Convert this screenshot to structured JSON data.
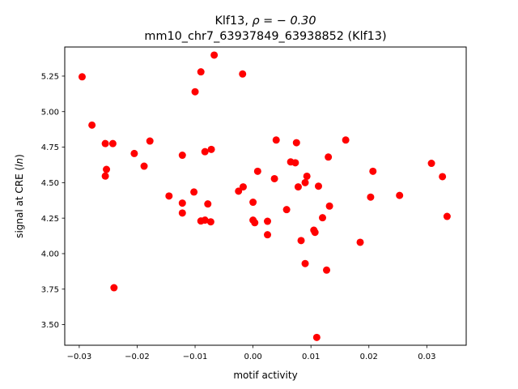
{
  "chart_data": {
    "type": "scatter",
    "title_line1_prefix": "Klf13, ",
    "title_line1_rho": "ρ = − 0.30",
    "title_line2": "mm10_chr7_63937849_63938852 (Klf13)",
    "xlabel": "motif activity",
    "ylabel_prefix": "signal at CRE (",
    "ylabel_italic": "ln",
    "ylabel_suffix": ")",
    "xlim": [
      -0.0325,
      0.0368
    ],
    "ylim": [
      3.355,
      5.455
    ],
    "xticks": [
      {
        "value": -0.03,
        "label": "−0.03"
      },
      {
        "value": -0.02,
        "label": "−0.02"
      },
      {
        "value": -0.01,
        "label": "−0.01"
      },
      {
        "value": 0.0,
        "label": "0.00"
      },
      {
        "value": 0.01,
        "label": "0.01"
      },
      {
        "value": 0.02,
        "label": "0.02"
      },
      {
        "value": 0.03,
        "label": "0.03"
      }
    ],
    "yticks": [
      {
        "value": 3.5,
        "label": "3.50"
      },
      {
        "value": 3.75,
        "label": "3.75"
      },
      {
        "value": 4.0,
        "label": "4.00"
      },
      {
        "value": 4.25,
        "label": "4.25"
      },
      {
        "value": 4.5,
        "label": "4.50"
      },
      {
        "value": 4.75,
        "label": "4.75"
      },
      {
        "value": 5.0,
        "label": "5.00"
      },
      {
        "value": 5.25,
        "label": "5.25"
      }
    ],
    "grid": false,
    "marker_color": "#ff0000",
    "points": [
      {
        "x": -0.0295,
        "y": 5.245
      },
      {
        "x": -0.0278,
        "y": 4.905
      },
      {
        "x": -0.0255,
        "y": 4.775
      },
      {
        "x": -0.0242,
        "y": 4.775
      },
      {
        "x": -0.0253,
        "y": 4.593
      },
      {
        "x": -0.0255,
        "y": 4.546
      },
      {
        "x": -0.024,
        "y": 3.76
      },
      {
        "x": -0.0205,
        "y": 4.705
      },
      {
        "x": -0.0178,
        "y": 4.793
      },
      {
        "x": -0.0188,
        "y": 4.616
      },
      {
        "x": -0.0145,
        "y": 4.406
      },
      {
        "x": -0.0122,
        "y": 4.693
      },
      {
        "x": -0.0122,
        "y": 4.356
      },
      {
        "x": -0.0122,
        "y": 4.286
      },
      {
        "x": -0.0102,
        "y": 4.434
      },
      {
        "x": -0.01,
        "y": 5.14
      },
      {
        "x": -0.009,
        "y": 5.28
      },
      {
        "x": -0.0067,
        "y": 5.398
      },
      {
        "x": -0.0083,
        "y": 4.718
      },
      {
        "x": -0.0072,
        "y": 4.734
      },
      {
        "x": -0.0078,
        "y": 4.35
      },
      {
        "x": -0.009,
        "y": 4.23
      },
      {
        "x": -0.0083,
        "y": 4.236
      },
      {
        "x": -0.0073,
        "y": 4.224
      },
      {
        "x": -0.0018,
        "y": 5.265
      },
      {
        "x": -0.0025,
        "y": 4.44
      },
      {
        "x": -0.0017,
        "y": 4.47
      },
      {
        "x": 0.0,
        "y": 4.362
      },
      {
        "x": 0.0,
        "y": 4.236
      },
      {
        "x": 0.0003,
        "y": 4.218
      },
      {
        "x": 0.0008,
        "y": 4.58
      },
      {
        "x": 0.0025,
        "y": 4.228
      },
      {
        "x": 0.0025,
        "y": 4.133
      },
      {
        "x": 0.0037,
        "y": 4.528
      },
      {
        "x": 0.004,
        "y": 4.8
      },
      {
        "x": 0.0058,
        "y": 4.31
      },
      {
        "x": 0.0065,
        "y": 4.646
      },
      {
        "x": 0.0073,
        "y": 4.64
      },
      {
        "x": 0.0075,
        "y": 4.781
      },
      {
        "x": 0.0078,
        "y": 4.47
      },
      {
        "x": 0.0083,
        "y": 4.092
      },
      {
        "x": 0.009,
        "y": 4.5
      },
      {
        "x": 0.0093,
        "y": 4.545
      },
      {
        "x": 0.009,
        "y": 3.93
      },
      {
        "x": 0.0105,
        "y": 4.165
      },
      {
        "x": 0.0107,
        "y": 4.15
      },
      {
        "x": 0.0113,
        "y": 4.475
      },
      {
        "x": 0.011,
        "y": 3.41
      },
      {
        "x": 0.012,
        "y": 4.253
      },
      {
        "x": 0.013,
        "y": 4.68
      },
      {
        "x": 0.0132,
        "y": 4.335
      },
      {
        "x": 0.0127,
        "y": 3.884
      },
      {
        "x": 0.016,
        "y": 4.8
      },
      {
        "x": 0.0185,
        "y": 4.08
      },
      {
        "x": 0.0203,
        "y": 4.398
      },
      {
        "x": 0.0207,
        "y": 4.58
      },
      {
        "x": 0.0253,
        "y": 4.41
      },
      {
        "x": 0.0308,
        "y": 4.636
      },
      {
        "x": 0.0327,
        "y": 4.542
      },
      {
        "x": 0.0335,
        "y": 4.262
      }
    ]
  }
}
